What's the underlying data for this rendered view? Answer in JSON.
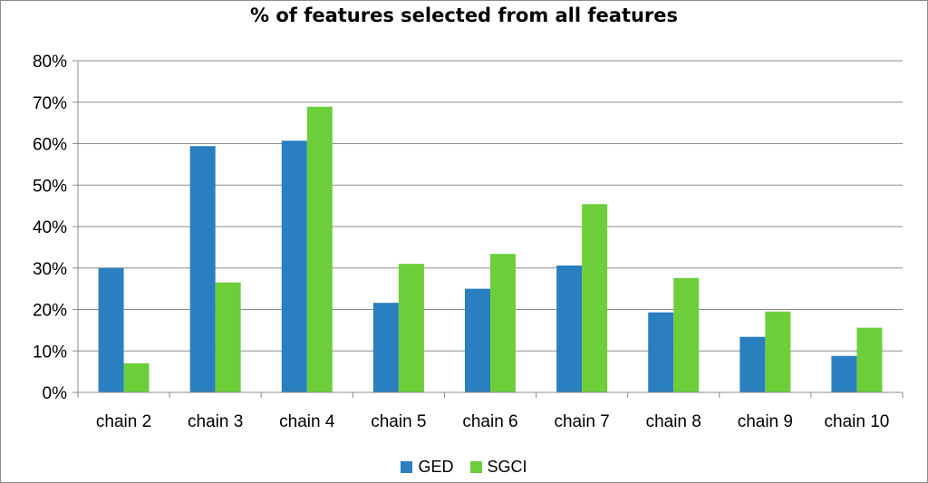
{
  "chart_data": {
    "type": "bar",
    "title": "% of features selected from all features",
    "categories": [
      "chain 2",
      "chain 3",
      "chain 4",
      "chain 5",
      "chain 6",
      "chain 7",
      "chain 8",
      "chain 9",
      "chain 10"
    ],
    "series": [
      {
        "name": "GED",
        "color": "#2a7fc1",
        "values": [
          0.3,
          0.594,
          0.607,
          0.216,
          0.25,
          0.306,
          0.193,
          0.134,
          0.088
        ]
      },
      {
        "name": "SGCI",
        "color": "#6ccf3a",
        "values": [
          0.07,
          0.265,
          0.689,
          0.31,
          0.334,
          0.454,
          0.276,
          0.195,
          0.156
        ]
      }
    ],
    "yticks": [
      "0%",
      "10%",
      "20%",
      "30%",
      "40%",
      "50%",
      "60%",
      "70%",
      "80%"
    ],
    "ylim": [
      0,
      0.8
    ],
    "grid": true,
    "legend_position": "bottom"
  }
}
